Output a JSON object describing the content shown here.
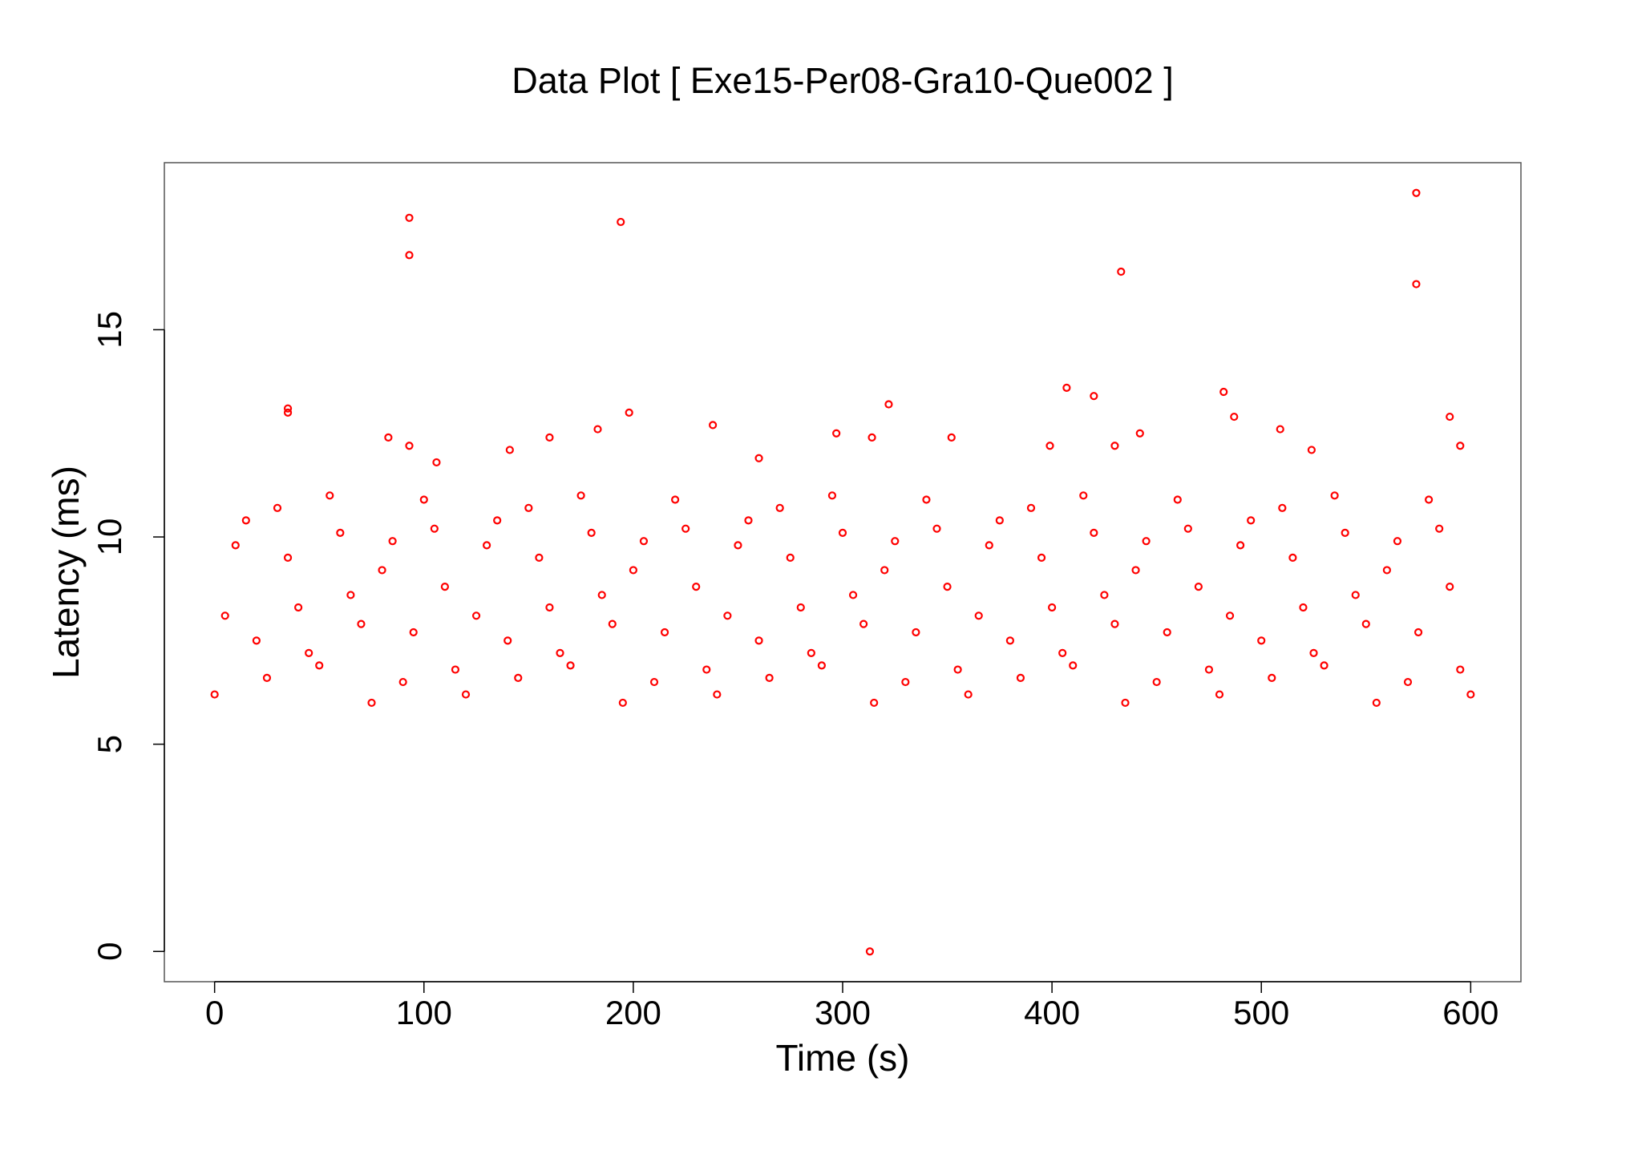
{
  "chart_data": {
    "type": "scatter",
    "title": "Data Plot [ Exe15-Per08-Gra10-Que002 ]",
    "x_label": "Time (s)",
    "y_label": "Latency (ms)",
    "color": "#ff0000",
    "xlim": [
      -24,
      624
    ],
    "ylim": [
      -0.73,
      19.03
    ],
    "xticks": [
      0,
      100,
      200,
      300,
      400,
      500,
      600
    ],
    "yticks": [
      0,
      5,
      10,
      15
    ],
    "x": [
      0,
      10,
      20,
      30,
      40,
      50,
      60,
      70,
      80,
      90,
      100,
      110,
      120,
      130,
      140,
      150,
      160,
      170,
      180,
      190,
      200,
      210,
      220,
      230,
      240,
      250,
      260,
      270,
      280,
      290,
      300,
      310,
      320,
      330,
      340,
      350,
      360,
      370,
      380,
      390,
      400,
      410,
      420,
      430,
      440,
      450,
      460,
      470,
      480,
      490,
      500,
      510,
      520,
      530,
      540,
      550,
      560,
      570,
      580,
      590,
      600,
      5,
      15,
      25,
      35,
      45,
      55,
      65,
      75,
      85,
      95,
      105,
      115,
      125,
      135,
      145,
      155,
      165,
      175,
      185,
      195,
      205,
      215,
      225,
      235,
      245,
      255,
      265,
      275,
      285,
      295,
      305,
      315,
      325,
      335,
      345,
      355,
      365,
      375,
      385,
      395,
      405,
      415,
      425,
      435,
      445,
      455,
      465,
      475,
      485,
      495,
      505,
      515,
      525,
      535,
      545,
      555,
      565,
      575,
      585,
      595,
      93,
      93,
      194,
      574,
      574,
      433,
      313,
      35,
      35,
      83,
      93,
      141,
      160,
      183,
      198,
      238,
      297,
      322,
      314,
      352,
      399,
      407,
      420,
      430,
      442,
      482,
      487,
      509,
      524,
      590,
      595,
      260,
      106
    ],
    "y": [
      6.2,
      9.8,
      7.5,
      10.7,
      8.3,
      6.9,
      10.1,
      7.9,
      9.2,
      6.5,
      10.9,
      8.8,
      6.2,
      9.8,
      7.5,
      10.7,
      8.3,
      6.9,
      10.1,
      7.9,
      9.2,
      6.5,
      10.9,
      8.8,
      6.2,
      9.8,
      7.5,
      10.7,
      8.3,
      6.9,
      10.1,
      7.9,
      9.2,
      6.5,
      10.9,
      8.8,
      6.2,
      9.8,
      7.5,
      10.7,
      8.3,
      6.9,
      10.1,
      7.9,
      9.2,
      6.5,
      10.9,
      8.8,
      6.2,
      9.8,
      7.5,
      10.7,
      8.3,
      6.9,
      10.1,
      7.9,
      9.2,
      6.5,
      10.9,
      8.8,
      6.2,
      8.1,
      10.4,
      6.6,
      9.5,
      7.2,
      11.0,
      8.6,
      6.0,
      9.9,
      7.7,
      10.2,
      6.8,
      8.1,
      10.4,
      6.6,
      9.5,
      7.2,
      11.0,
      8.6,
      6.0,
      9.9,
      7.7,
      10.2,
      6.8,
      8.1,
      10.4,
      6.6,
      9.5,
      7.2,
      11.0,
      8.6,
      6.0,
      9.9,
      7.7,
      10.2,
      6.8,
      8.1,
      10.4,
      6.6,
      9.5,
      7.2,
      11.0,
      8.6,
      6.0,
      9.9,
      7.7,
      10.2,
      6.8,
      8.1,
      10.4,
      6.6,
      9.5,
      7.2,
      11.0,
      8.6,
      6.0,
      9.9,
      7.7,
      10.2,
      6.8,
      17.7,
      16.8,
      17.6,
      18.3,
      16.1,
      16.4,
      0,
      13.0,
      13.1,
      12.4,
      12.2,
      12.1,
      12.4,
      12.6,
      13.0,
      12.7,
      12.5,
      13.2,
      12.4,
      12.4,
      12.2,
      13.6,
      13.4,
      12.2,
      12.5,
      13.5,
      12.9,
      12.6,
      12.1,
      12.9,
      12.2,
      11.9,
      11.8
    ]
  }
}
